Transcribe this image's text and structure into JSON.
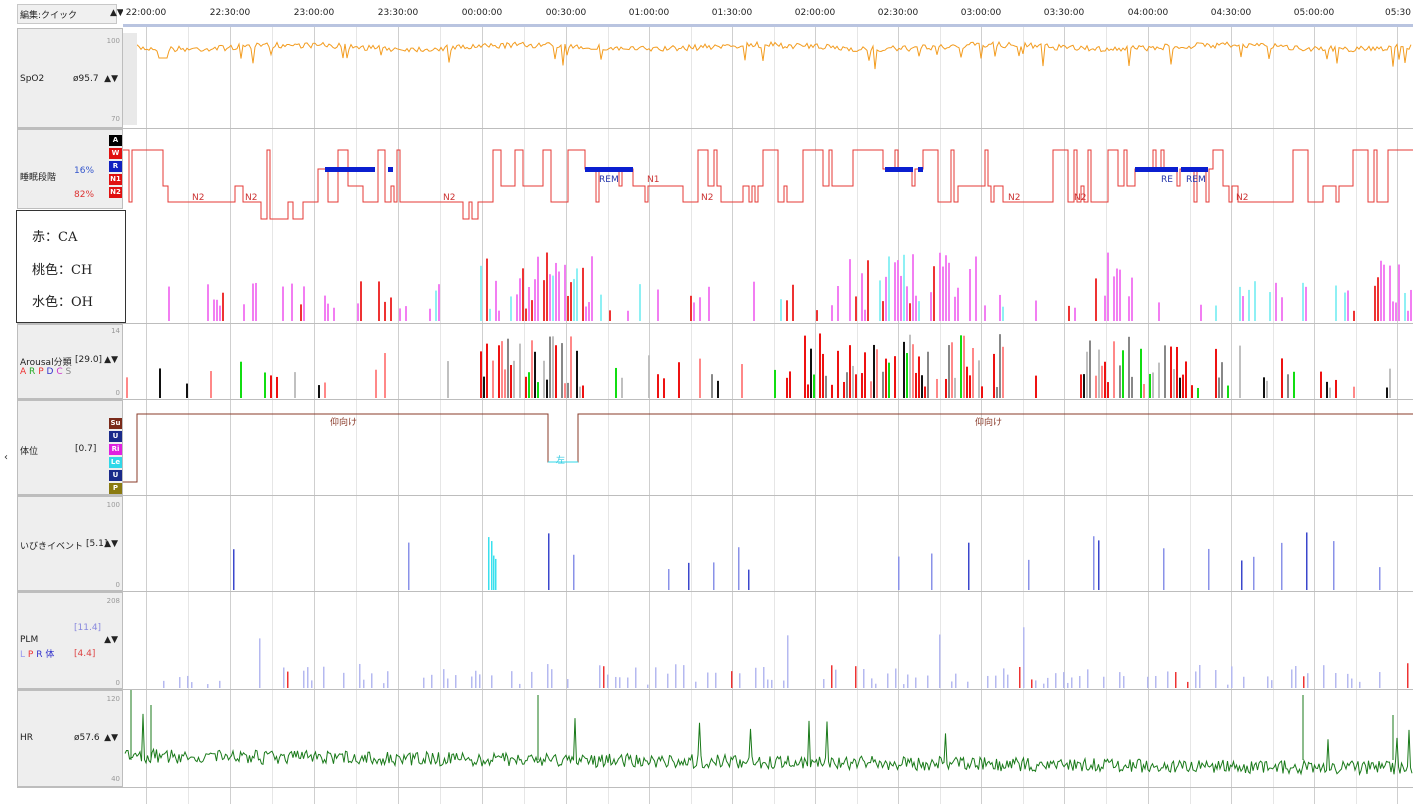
{
  "header": {
    "label": "編集:クイック",
    "arrows": "▲▼"
  },
  "timeline": {
    "ticks": [
      "22:00:00",
      "22:30:00",
      "23:00:00",
      "23:30:00",
      "00:00:00",
      "00:30:00",
      "01:00:00",
      "01:30:00",
      "02:00:00",
      "02:30:00",
      "03:00:00",
      "03:30:00",
      "04:00:00",
      "04:30:00",
      "05:00:00",
      "05:30"
    ]
  },
  "channels": {
    "spo2": {
      "name": "SpO2",
      "value": "ø95.7",
      "arrows": "▲▼",
      "scale_top": "100",
      "scale_bottom": "70",
      "color": "#f39c1f"
    },
    "sleep_stage": {
      "name": "睡眠段階",
      "pct_blue": "16%",
      "pct_red": "82%",
      "states": [
        "A",
        "W",
        "R",
        "N1",
        "N2"
      ],
      "labels": {
        "n2": "N2",
        "rem": "REM",
        "n1": "N1",
        "re": "RE"
      }
    },
    "respiratory": {
      "legend": {
        "ca": "赤：CA",
        "ch": "桃色：CH",
        "oh": "水色：OH"
      }
    },
    "arousal": {
      "name": "Arousal分類",
      "value": "[29.0]",
      "arrows": "▲▼",
      "legend": [
        "A",
        "R",
        "P",
        "D",
        "C",
        "S"
      ],
      "scale_top": "14",
      "scale_bottom": "0"
    },
    "position": {
      "name": "体位",
      "value": "[0.7]",
      "states": [
        "Su",
        "U",
        "Ri",
        "Le",
        "U",
        "P"
      ],
      "label_supine": "仰向け",
      "label_left": "左"
    },
    "snore": {
      "name": "いびきイベント",
      "value": "[5.1]",
      "arrows": "▲▼",
      "scale_top": "100",
      "scale_bottom": "0"
    },
    "plm": {
      "name": "PLM",
      "value1": "[11.4]",
      "value2": "[4.4]",
      "arrows": "▲▼",
      "legend": [
        "L",
        "P",
        "R",
        "体"
      ],
      "scale_top": "208",
      "scale_bottom": "0"
    },
    "hr": {
      "name": "HR",
      "value": "ø57.6",
      "arrows": "▲▼",
      "scale_top": "120",
      "scale_bottom": "40",
      "color": "#1a7a1a"
    }
  }
}
